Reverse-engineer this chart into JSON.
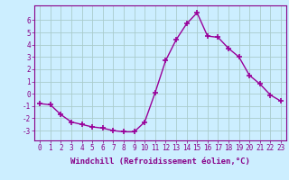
{
  "x": [
    0,
    1,
    2,
    3,
    4,
    5,
    6,
    7,
    8,
    9,
    10,
    11,
    12,
    13,
    14,
    15,
    16,
    17,
    18,
    19,
    20,
    21,
    22,
    23
  ],
  "y": [
    -0.8,
    -0.9,
    -1.7,
    -2.3,
    -2.5,
    -2.7,
    -2.8,
    -3.0,
    -3.1,
    -3.1,
    -2.3,
    0.1,
    2.7,
    4.4,
    5.7,
    6.6,
    4.7,
    4.6,
    3.7,
    3.0,
    1.5,
    0.8,
    -0.1,
    -0.6
  ],
  "line_color": "#990099",
  "marker": "+",
  "marker_size": 4,
  "marker_linewidth": 1.2,
  "line_width": 1.0,
  "background_color": "#cceeff",
  "grid_color": "#aacccc",
  "xlabel": "Windchill (Refroidissement éolien,°C)",
  "tick_color": "#880088",
  "tick_fontsize": 5.5,
  "xlabel_fontsize": 6.5,
  "ylim": [
    -3.8,
    7.2
  ],
  "xlim": [
    -0.5,
    23.5
  ],
  "yticks": [
    -3,
    -2,
    -1,
    0,
    1,
    2,
    3,
    4,
    5,
    6
  ],
  "xticks": [
    0,
    1,
    2,
    3,
    4,
    5,
    6,
    7,
    8,
    9,
    10,
    11,
    12,
    13,
    14,
    15,
    16,
    17,
    18,
    19,
    20,
    21,
    22,
    23
  ]
}
